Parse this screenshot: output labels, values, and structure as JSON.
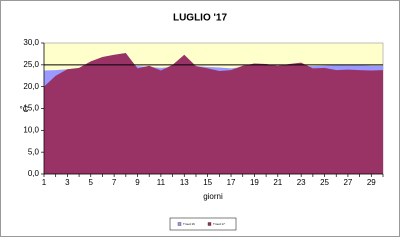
{
  "chart_data": {
    "type": "area",
    "title": "LUGLIO '17",
    "y_label": "°C",
    "x_label": "giorni",
    "categories": [
      "1",
      null,
      "3",
      null,
      "5",
      null,
      "7",
      null,
      "9",
      null,
      "11",
      null,
      "13",
      null,
      "15",
      null,
      "17",
      null,
      "19",
      null,
      "21",
      null,
      "23",
      null,
      "25",
      null,
      "27",
      null,
      "29",
      null
    ],
    "series": [
      {
        "name": "Tmed 16",
        "color": "#9999ff",
        "values": [
          23.7,
          23.8,
          24,
          24.2,
          24.5,
          24.8,
          25,
          25,
          24.7,
          24.5,
          24.3,
          24.5,
          24.8,
          24.7,
          24.5,
          24.4,
          24.2,
          24.5,
          24.8,
          24.8,
          24.7,
          24.7,
          24.8,
          24.7,
          24.8,
          24.9,
          24.9,
          24.9,
          24.8,
          24.8
        ]
      },
      {
        "name": "Tmed 17",
        "color": "#993366",
        "values": [
          20,
          22.5,
          24,
          24.3,
          25.8,
          26.8,
          27.3,
          27.7,
          24.2,
          24.8,
          23.7,
          25,
          27.3,
          24.7,
          24.2,
          23.6,
          23.8,
          24.8,
          25.3,
          25.2,
          24.8,
          25.2,
          25.5,
          24.2,
          24.3,
          23.8,
          23.9,
          23.8,
          23.7,
          23.8
        ]
      }
    ],
    "reference_line": 25,
    "plot_background": "#ffffcc",
    "ylim": [
      0,
      30
    ],
    "yticks": [
      {
        "value": 0,
        "label": "0,0"
      },
      {
        "value": 5,
        "label": "5,0"
      },
      {
        "value": 10,
        "label": "10,0"
      },
      {
        "value": 15,
        "label": "15,0"
      },
      {
        "value": 20,
        "label": "20,0"
      },
      {
        "value": 25,
        "label": "25,0"
      },
      {
        "value": 30,
        "label": "30,0"
      }
    ],
    "legend": "bottom"
  }
}
